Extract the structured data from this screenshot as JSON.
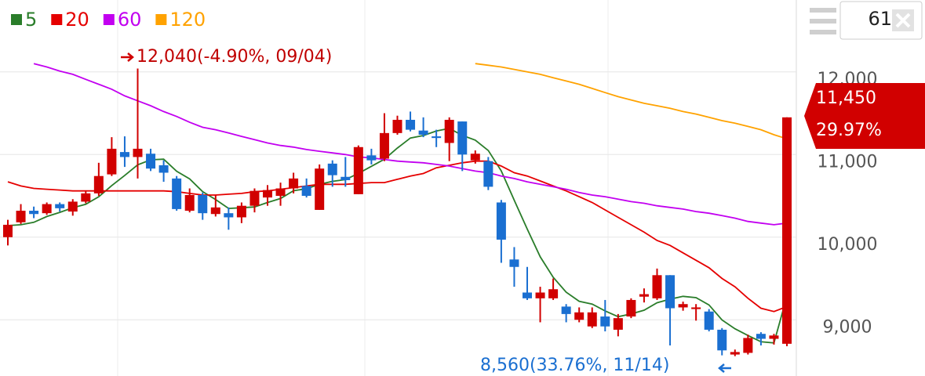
{
  "chart_data": {
    "type": "candlestick",
    "open": [
      10000,
      10180,
      10320,
      10290,
      10400,
      10310,
      10430,
      10530,
      10760,
      11030,
      10970,
      11010,
      10870,
      10710,
      10320,
      10510,
      10280,
      10290,
      10240,
      10380,
      10480,
      10500,
      10590,
      10620,
      10330,
      10890,
      10730,
      10520,
      10990,
      10950,
      11260,
      11420,
      11290,
      11220,
      11140,
      11400,
      10930,
      10920,
      10420,
      9730,
      9330,
      9260,
      9260,
      9160,
      9000,
      8920,
      9040,
      8880,
      9040,
      9280,
      9260,
      9540,
      9150,
      9130,
      9100,
      8880,
      8580,
      8600,
      8830,
      8770,
      8710
    ],
    "high": [
      10210,
      10400,
      10370,
      10420,
      10420,
      10460,
      10560,
      10900,
      11210,
      11220,
      12040,
      11070,
      10930,
      10740,
      10590,
      10540,
      10510,
      10360,
      10420,
      10590,
      10630,
      10660,
      10780,
      10710,
      10880,
      10930,
      10970,
      11110,
      11070,
      11500,
      11470,
      11520,
      11450,
      11300,
      11450,
      11400,
      11050,
      10970,
      10450,
      9880,
      9640,
      9400,
      9500,
      9190,
      9150,
      9150,
      9240,
      9070,
      9260,
      9380,
      9620,
      9540,
      9220,
      9190,
      9130,
      8900,
      8640,
      8820,
      8850,
      8830,
      11450
    ],
    "low": [
      9900,
      10160,
      10230,
      10270,
      10310,
      10260,
      10410,
      10500,
      10740,
      10850,
      10710,
      10800,
      10670,
      10320,
      10300,
      10210,
      10250,
      10090,
      10170,
      10300,
      10380,
      10380,
      10530,
      10480,
      10330,
      10610,
      10610,
      10520,
      10880,
      10920,
      11240,
      11280,
      11210,
      11090,
      10920,
      10800,
      10890,
      10570,
      9690,
      9400,
      9240,
      8970,
      9240,
      8970,
      8970,
      8900,
      8860,
      8800,
      9020,
      9210,
      9240,
      8690,
      9110,
      8990,
      8860,
      8570,
      8560,
      8580,
      8690,
      8700,
      8680
    ],
    "close": [
      10150,
      10320,
      10280,
      10400,
      10350,
      10430,
      10530,
      10740,
      11070,
      10970,
      11070,
      10830,
      10780,
      10340,
      10510,
      10290,
      10360,
      10240,
      10380,
      10560,
      10570,
      10590,
      10710,
      10500,
      10830,
      10750,
      10690,
      11090,
      10930,
      11260,
      11420,
      11300,
      11240,
      11200,
      11420,
      11000,
      11010,
      10610,
      9970,
      9640,
      9260,
      9330,
      9370,
      9070,
      9090,
      9090,
      8920,
      9020,
      9240,
      9310,
      9540,
      9140,
      9190,
      9150,
      8880,
      8630,
      8610,
      8780,
      8770,
      8810,
      11450
    ],
    "up_color": "#d10000",
    "down_color": "#1a6fd1",
    "series": [
      {
        "name": "5",
        "color": "#2a7d2a",
        "values": [
          10140,
          10150,
          10180,
          10250,
          10300,
          10356,
          10398,
          10490,
          10624,
          10748,
          10876,
          10936,
          10944,
          10798,
          10706,
          10550,
          10456,
          10348,
          10356,
          10366,
          10420,
          10468,
          10562,
          10586,
          10640,
          10676,
          10696,
          10772,
          10858,
          10944,
          11078,
          11200,
          11230,
          11284,
          11316,
          11232,
          11174,
          11048,
          10802,
          10446,
          10098,
          9762,
          9514,
          9334,
          9224,
          9190,
          9108,
          9038,
          9072,
          9116,
          9206,
          9250,
          9284,
          9268,
          9180,
          8998,
          8892,
          8810,
          8734,
          8720,
          9284
        ]
      },
      {
        "name": "20",
        "color": "#e50000",
        "values": [
          10670,
          10620,
          10590,
          10580,
          10570,
          10560,
          10560,
          10560,
          10560,
          10560,
          10560,
          10560,
          10560,
          10550,
          10530,
          10510,
          10510,
          10520,
          10530,
          10550,
          10560,
          10580,
          10600,
          10620,
          10640,
          10640,
          10640,
          10650,
          10660,
          10660,
          10700,
          10740,
          10770,
          10840,
          10870,
          10900,
          10920,
          10920,
          10860,
          10780,
          10740,
          10680,
          10620,
          10560,
          10490,
          10420,
          10330,
          10240,
          10150,
          10060,
          9960,
          9900,
          9810,
          9720,
          9630,
          9500,
          9400,
          9260,
          9140,
          9100,
          9160
        ]
      },
      {
        "name": "60",
        "color": "#c200f0",
        "values": [
          null,
          null,
          12100,
          12060,
          12010,
          11970,
          11910,
          11850,
          11790,
          11710,
          11650,
          11590,
          11520,
          11460,
          11390,
          11330,
          11300,
          11260,
          11220,
          11180,
          11140,
          11110,
          11090,
          11060,
          11040,
          11020,
          11000,
          10970,
          10960,
          10940,
          10920,
          10910,
          10900,
          10880,
          10860,
          10830,
          10800,
          10780,
          10740,
          10710,
          10670,
          10640,
          10610,
          10580,
          10540,
          10510,
          10490,
          10460,
          10430,
          10410,
          10380,
          10360,
          10340,
          10310,
          10290,
          10260,
          10230,
          10190,
          10170,
          10150,
          10170
        ]
      },
      {
        "name": "120",
        "color": "#ffa200",
        "values": [
          null,
          null,
          null,
          null,
          null,
          null,
          null,
          null,
          null,
          null,
          null,
          null,
          null,
          null,
          null,
          null,
          null,
          null,
          null,
          null,
          null,
          null,
          null,
          null,
          null,
          null,
          null,
          null,
          null,
          null,
          null,
          null,
          null,
          null,
          null,
          null,
          12100,
          12080,
          12060,
          12030,
          12000,
          11970,
          11930,
          11890,
          11850,
          11800,
          11750,
          11700,
          11660,
          11620,
          11590,
          11560,
          11520,
          11490,
          11450,
          11410,
          11380,
          11340,
          11300,
          11240,
          11190
        ]
      }
    ],
    "ylim": [
      8320,
      12870
    ],
    "yticks": [
      {
        "value": 9000,
        "label": "9,000"
      },
      {
        "value": 10000,
        "label": "10,000"
      },
      {
        "value": 11000,
        "label": "11,000"
      },
      {
        "value": 12000,
        "label": "12,000"
      }
    ],
    "grid": true,
    "max_annotation": "12,040(-4.90%, 09/04)",
    "min_annotation": "8,560(33.76%, 11/14)",
    "current_price": "11,450",
    "current_change": "29.97%",
    "period_input": 61
  }
}
